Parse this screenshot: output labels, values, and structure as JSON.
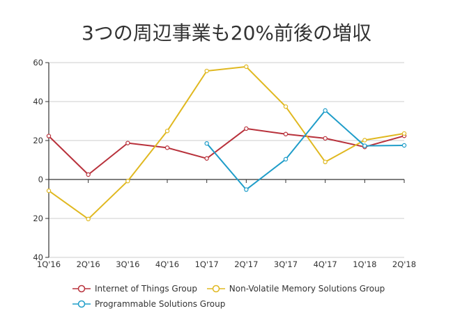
{
  "chart_data": {
    "type": "line",
    "title": "3つの周辺事業も20%前後の増収",
    "xlabel": "",
    "ylabel": "",
    "categories": [
      "1Q'16",
      "2Q'16",
      "3Q'16",
      "4Q'16",
      "1Q'17",
      "2Q'17",
      "3Q'17",
      "4Q'17",
      "1Q'18",
      "2Q'18"
    ],
    "ylim": [
      -40,
      60
    ],
    "yticks": [
      60,
      40,
      20,
      0,
      -20,
      -40
    ],
    "ytick_labels": [
      "60",
      "40",
      "20",
      "0",
      "20",
      "40"
    ],
    "grid": true,
    "legend_position": "bottom",
    "series": [
      {
        "name": "Internet of Things Group",
        "color": "#b8313b",
        "values": [
          22.3,
          2.5,
          18.7,
          16.3,
          10.8,
          26.1,
          23.3,
          21.1,
          16.7,
          22.4
        ]
      },
      {
        "name": "Non-Volatile Memory Solutions Group",
        "color": "#e0b820",
        "values": [
          -5.8,
          -20.3,
          -0.8,
          24.9,
          55.7,
          57.9,
          37.4,
          9.0,
          20.2,
          23.6
        ]
      },
      {
        "name": "Programmable Solutions Group",
        "color": "#1f9dc9",
        "values": [
          null,
          null,
          null,
          null,
          18.5,
          -5.2,
          10.4,
          35.4,
          17.3,
          17.5
        ]
      }
    ]
  }
}
